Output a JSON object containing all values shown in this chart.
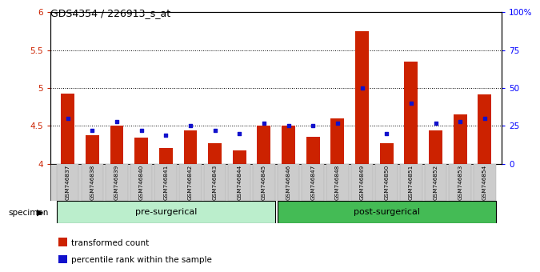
{
  "title": "GDS4354 / 226913_s_at",
  "samples": [
    "GSM746837",
    "GSM746838",
    "GSM746839",
    "GSM746840",
    "GSM746841",
    "GSM746842",
    "GSM746843",
    "GSM746844",
    "GSM746845",
    "GSM746846",
    "GSM746847",
    "GSM746848",
    "GSM746849",
    "GSM746850",
    "GSM746851",
    "GSM746852",
    "GSM746853",
    "GSM746854"
  ],
  "red_values": [
    4.93,
    4.38,
    4.5,
    4.34,
    4.21,
    4.44,
    4.27,
    4.18,
    4.5,
    4.5,
    4.36,
    4.6,
    5.75,
    4.27,
    5.35,
    4.44,
    4.65,
    4.92
  ],
  "blue_values": [
    30,
    22,
    28,
    22,
    19,
    25,
    22,
    20,
    27,
    25,
    25,
    27,
    50,
    20,
    40,
    27,
    28,
    30
  ],
  "ylim_left": [
    4.0,
    6.0
  ],
  "ylim_right": [
    0,
    100
  ],
  "yticks_left": [
    4.0,
    4.5,
    5.0,
    5.5,
    6.0
  ],
  "ytick_labels_left": [
    "4",
    "4.5",
    "5",
    "5.5",
    "6"
  ],
  "yticks_right": [
    0,
    25,
    50,
    75,
    100
  ],
  "ytick_labels_right": [
    "0",
    "25",
    "50",
    "75",
    "100%"
  ],
  "hlines": [
    4.5,
    5.0,
    5.5
  ],
  "bar_color": "#cc2200",
  "dot_color": "#1111cc",
  "bar_width": 0.55,
  "pre_group_color": "#bbeecc",
  "post_group_color": "#44bb55",
  "pre_label": "pre-surgerical",
  "post_label": "post-surgerical",
  "pre_range": [
    0,
    8
  ],
  "post_range": [
    9,
    17
  ],
  "legend_items": [
    "transformed count",
    "percentile rank within the sample"
  ],
  "specimen_label": "specimen"
}
